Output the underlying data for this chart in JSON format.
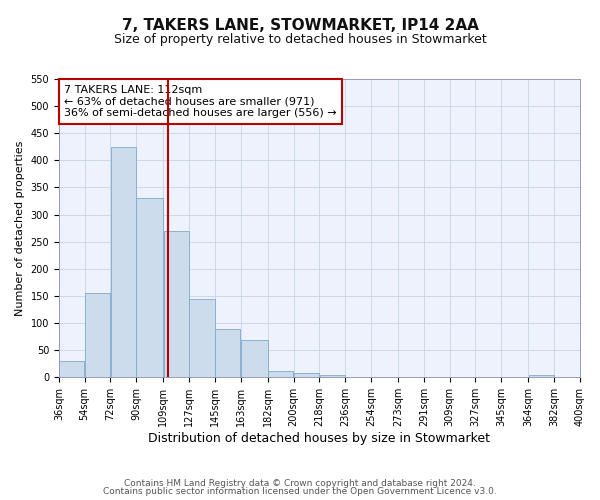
{
  "title": "7, TAKERS LANE, STOWMARKET, IP14 2AA",
  "subtitle": "Size of property relative to detached houses in Stowmarket",
  "xlabel": "Distribution of detached houses by size in Stowmarket",
  "ylabel": "Number of detached properties",
  "bin_edges": [
    36,
    54,
    72,
    90,
    109,
    127,
    145,
    163,
    182,
    200,
    218,
    236,
    254,
    273,
    291,
    309,
    327,
    345,
    364,
    382,
    400
  ],
  "bin_heights": [
    30,
    155,
    425,
    330,
    270,
    145,
    90,
    68,
    12,
    8,
    5,
    0,
    0,
    0,
    0,
    0,
    0,
    0,
    5,
    0
  ],
  "bar_color": "#ccdcec",
  "bar_edge_color": "#7aabcc",
  "vline_x": 112,
  "vline_color": "#bb0000",
  "annotation_text": "7 TAKERS LANE: 112sqm\n← 63% of detached houses are smaller (971)\n36% of semi-detached houses are larger (556) →",
  "annotation_box_color": "#ffffff",
  "annotation_box_edge": "#bb0000",
  "ylim": [
    0,
    550
  ],
  "yticks": [
    0,
    50,
    100,
    150,
    200,
    250,
    300,
    350,
    400,
    450,
    500,
    550
  ],
  "grid_color": "#c8d4e8",
  "bg_color": "#eef2fc",
  "footer_line1": "Contains HM Land Registry data © Crown copyright and database right 2024.",
  "footer_line2": "Contains public sector information licensed under the Open Government Licence v3.0.",
  "title_fontsize": 11,
  "subtitle_fontsize": 9,
  "xlabel_fontsize": 9,
  "ylabel_fontsize": 8,
  "tick_fontsize": 7,
  "annotation_fontsize": 8,
  "footer_fontsize": 6.5
}
